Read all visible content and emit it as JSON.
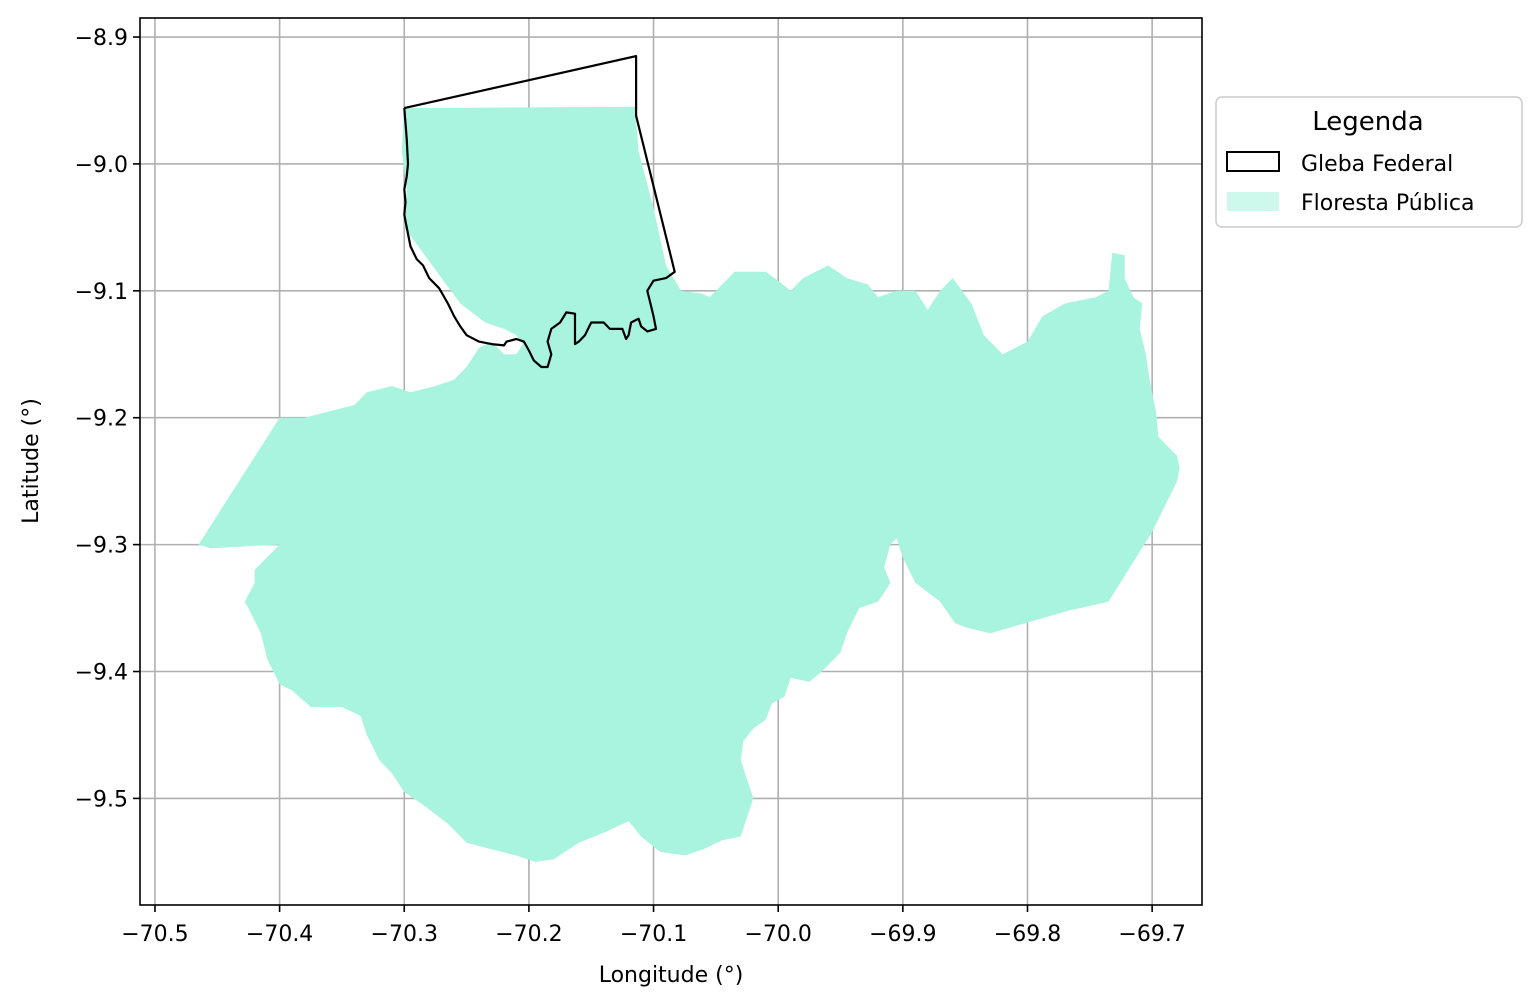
{
  "chart_data": {
    "type": "map",
    "title": "",
    "xlabel": "Longitude (°)",
    "ylabel": "Latitude (°)",
    "xlim": [
      -70.512,
      -69.66
    ],
    "ylim": [
      -9.584,
      -8.885
    ],
    "grid": true,
    "x_ticks": [
      -70.5,
      -70.4,
      -70.3,
      -70.2,
      -70.1,
      -70.0,
      -69.9,
      -69.8,
      -69.7
    ],
    "x_tick_labels": [
      "−70.5",
      "−70.4",
      "−70.3",
      "−70.2",
      "−70.1",
      "−70.0",
      "−69.9",
      "−69.8",
      "−69.7"
    ],
    "y_ticks": [
      -8.9,
      -9.0,
      -9.1,
      -9.2,
      -9.3,
      -9.4,
      -9.5
    ],
    "y_tick_labels": [
      "−8.9",
      "−9.0",
      "−9.1",
      "−9.2",
      "−9.3",
      "−9.4",
      "−9.5"
    ],
    "legend": {
      "title": "Legenda",
      "position": "outside-right-top",
      "entries": [
        {
          "label": "Gleba Federal",
          "style": "outline",
          "color": "#000000"
        },
        {
          "label": "Floresta Pública",
          "style": "fill",
          "color": "#a8f4df"
        }
      ]
    },
    "layers": [
      {
        "name": "Floresta Pública",
        "kind": "polygon",
        "color": "#a8f4df",
        "coords": [
          [
            -70.3,
            -8.956
          ],
          [
            -70.115,
            -8.955
          ],
          [
            -70.112,
            -8.99
          ],
          [
            -70.1,
            -9.035
          ],
          [
            -70.09,
            -9.08
          ],
          [
            -70.078,
            -9.1
          ],
          [
            -70.062,
            -9.102
          ],
          [
            -70.055,
            -9.105
          ],
          [
            -70.045,
            -9.095
          ],
          [
            -70.035,
            -9.085
          ],
          [
            -70.02,
            -9.085
          ],
          [
            -70.01,
            -9.085
          ],
          [
            -70.0,
            -9.092
          ],
          [
            -69.99,
            -9.1
          ],
          [
            -69.98,
            -9.09
          ],
          [
            -69.96,
            -9.08
          ],
          [
            -69.945,
            -9.09
          ],
          [
            -69.928,
            -9.095
          ],
          [
            -69.92,
            -9.105
          ],
          [
            -69.905,
            -9.1
          ],
          [
            -69.89,
            -9.1
          ],
          [
            -69.88,
            -9.115
          ],
          [
            -69.87,
            -9.1
          ],
          [
            -69.86,
            -9.09
          ],
          [
            -69.845,
            -9.11
          ],
          [
            -69.835,
            -9.135
          ],
          [
            -69.82,
            -9.15
          ],
          [
            -69.8,
            -9.14
          ],
          [
            -69.788,
            -9.12
          ],
          [
            -69.77,
            -9.11
          ],
          [
            -69.745,
            -9.105
          ],
          [
            -69.735,
            -9.1
          ],
          [
            -69.732,
            -9.07
          ],
          [
            -69.722,
            -9.072
          ],
          [
            -69.722,
            -9.09
          ],
          [
            -69.715,
            -9.105
          ],
          [
            -69.708,
            -9.11
          ],
          [
            -69.71,
            -9.13
          ],
          [
            -69.705,
            -9.15
          ],
          [
            -69.702,
            -9.17
          ],
          [
            -69.697,
            -9.195
          ],
          [
            -69.695,
            -9.215
          ],
          [
            -69.69,
            -9.22
          ],
          [
            -69.68,
            -9.23
          ],
          [
            -69.678,
            -9.24
          ],
          [
            -69.68,
            -9.25
          ],
          [
            -69.7,
            -9.29
          ],
          [
            -69.735,
            -9.345
          ],
          [
            -69.767,
            -9.352
          ],
          [
            -69.83,
            -9.37
          ],
          [
            -69.85,
            -9.365
          ],
          [
            -69.858,
            -9.362
          ],
          [
            -69.87,
            -9.345
          ],
          [
            -69.89,
            -9.33
          ],
          [
            -69.9,
            -9.31
          ],
          [
            -69.905,
            -9.295
          ],
          [
            -69.91,
            -9.3
          ],
          [
            -69.915,
            -9.318
          ],
          [
            -69.91,
            -9.33
          ],
          [
            -69.915,
            -9.338
          ],
          [
            -69.92,
            -9.345
          ],
          [
            -69.935,
            -9.35
          ],
          [
            -69.945,
            -9.37
          ],
          [
            -69.95,
            -9.385
          ],
          [
            -69.965,
            -9.4
          ],
          [
            -69.975,
            -9.408
          ],
          [
            -69.99,
            -9.405
          ],
          [
            -69.995,
            -9.42
          ],
          [
            -70.005,
            -9.425
          ],
          [
            -70.01,
            -9.438
          ],
          [
            -70.02,
            -9.445
          ],
          [
            -70.028,
            -9.455
          ],
          [
            -70.03,
            -9.47
          ],
          [
            -70.025,
            -9.485
          ],
          [
            -70.02,
            -9.5
          ],
          [
            -70.025,
            -9.515
          ],
          [
            -70.03,
            -9.53
          ],
          [
            -70.045,
            -9.533
          ],
          [
            -70.06,
            -9.54
          ],
          [
            -70.075,
            -9.545
          ],
          [
            -70.095,
            -9.542
          ],
          [
            -70.11,
            -9.53
          ],
          [
            -70.12,
            -9.518
          ],
          [
            -70.14,
            -9.527
          ],
          [
            -70.16,
            -9.535
          ],
          [
            -70.18,
            -9.548
          ],
          [
            -70.195,
            -9.55
          ],
          [
            -70.21,
            -9.545
          ],
          [
            -70.23,
            -9.54
          ],
          [
            -70.25,
            -9.535
          ],
          [
            -70.265,
            -9.52
          ],
          [
            -70.285,
            -9.505
          ],
          [
            -70.3,
            -9.495
          ],
          [
            -70.31,
            -9.48
          ],
          [
            -70.32,
            -9.47
          ],
          [
            -70.33,
            -9.45
          ],
          [
            -70.335,
            -9.435
          ],
          [
            -70.35,
            -9.428
          ],
          [
            -70.375,
            -9.428
          ],
          [
            -70.39,
            -9.415
          ],
          [
            -70.4,
            -9.41
          ],
          [
            -70.41,
            -9.39
          ],
          [
            -70.415,
            -9.37
          ],
          [
            -70.425,
            -9.35
          ],
          [
            -70.428,
            -9.345
          ],
          [
            -70.42,
            -9.33
          ],
          [
            -70.42,
            -9.32
          ],
          [
            -70.41,
            -9.31
          ],
          [
            -70.4,
            -9.3
          ],
          [
            -70.44,
            -9.302
          ],
          [
            -70.455,
            -9.303
          ],
          [
            -70.465,
            -9.3
          ],
          [
            -70.4,
            -9.2
          ],
          [
            -70.38,
            -9.2
          ],
          [
            -70.36,
            -9.195
          ],
          [
            -70.34,
            -9.19
          ],
          [
            -70.33,
            -9.18
          ],
          [
            -70.31,
            -9.175
          ],
          [
            -70.295,
            -9.18
          ],
          [
            -70.275,
            -9.175
          ],
          [
            -70.26,
            -9.17
          ],
          [
            -70.25,
            -9.16
          ],
          [
            -70.24,
            -9.145
          ],
          [
            -70.23,
            -9.14
          ],
          [
            -70.22,
            -9.15
          ],
          [
            -70.21,
            -9.15
          ],
          [
            -70.205,
            -9.142
          ],
          [
            -70.21,
            -9.135
          ],
          [
            -70.22,
            -9.13
          ],
          [
            -70.235,
            -9.125
          ],
          [
            -70.255,
            -9.11
          ],
          [
            -70.27,
            -9.09
          ],
          [
            -70.285,
            -9.07
          ],
          [
            -70.3,
            -9.05
          ],
          [
            -70.298,
            -9.02
          ],
          [
            -70.302,
            -8.99
          ],
          [
            -70.3,
            -8.956
          ]
        ]
      },
      {
        "name": "Gleba Federal",
        "kind": "polyline",
        "color": "#000000",
        "coords": [
          [
            -70.3,
            -8.956
          ],
          [
            -70.114,
            -8.915
          ],
          [
            -70.114,
            -8.962
          ],
          [
            -70.083,
            -9.085
          ],
          [
            -70.09,
            -9.09
          ],
          [
            -70.1,
            -9.092
          ],
          [
            -70.105,
            -9.1
          ],
          [
            -70.102,
            -9.112
          ],
          [
            -70.1,
            -9.12
          ],
          [
            -70.098,
            -9.13
          ],
          [
            -70.105,
            -9.132
          ],
          [
            -70.11,
            -9.128
          ],
          [
            -70.112,
            -9.122
          ],
          [
            -70.118,
            -9.125
          ],
          [
            -70.12,
            -9.135
          ],
          [
            -70.122,
            -9.138
          ],
          [
            -70.125,
            -9.13
          ],
          [
            -70.135,
            -9.13
          ],
          [
            -70.14,
            -9.125
          ],
          [
            -70.15,
            -9.125
          ],
          [
            -70.155,
            -9.135
          ],
          [
            -70.16,
            -9.14
          ],
          [
            -70.163,
            -9.142
          ],
          [
            -70.163,
            -9.13
          ],
          [
            -70.163,
            -9.118
          ],
          [
            -70.17,
            -9.117
          ],
          [
            -70.175,
            -9.125
          ],
          [
            -70.182,
            -9.13
          ],
          [
            -70.185,
            -9.14
          ],
          [
            -70.182,
            -9.15
          ],
          [
            -70.185,
            -9.16
          ],
          [
            -70.19,
            -9.16
          ],
          [
            -70.196,
            -9.155
          ],
          [
            -70.2,
            -9.147
          ],
          [
            -70.204,
            -9.14
          ],
          [
            -70.21,
            -9.138
          ],
          [
            -70.218,
            -9.14
          ],
          [
            -70.22,
            -9.143
          ],
          [
            -70.23,
            -9.142
          ],
          [
            -70.24,
            -9.14
          ],
          [
            -70.25,
            -9.135
          ],
          [
            -70.255,
            -9.128
          ],
          [
            -70.26,
            -9.12
          ],
          [
            -70.265,
            -9.11
          ],
          [
            -70.272,
            -9.098
          ],
          [
            -70.28,
            -9.09
          ],
          [
            -70.285,
            -9.08
          ],
          [
            -70.29,
            -9.075
          ],
          [
            -70.295,
            -9.065
          ],
          [
            -70.298,
            -9.05
          ],
          [
            -70.3,
            -9.04
          ],
          [
            -70.299,
            -9.03
          ],
          [
            -70.3,
            -9.02
          ],
          [
            -70.298,
            -9.01
          ],
          [
            -70.297,
            -9.0
          ],
          [
            -70.298,
            -8.98
          ],
          [
            -70.3,
            -8.956
          ]
        ]
      }
    ]
  }
}
